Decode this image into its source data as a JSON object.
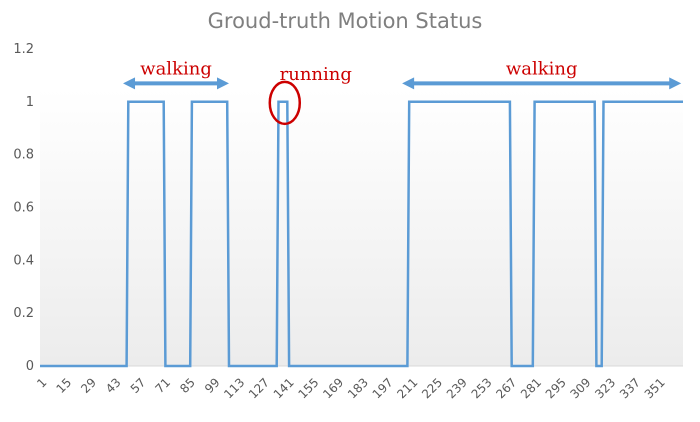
{
  "chart_data": {
    "type": "line",
    "title": "Groud-truth Motion Status",
    "xlabel": "",
    "ylabel": "",
    "xlim": [
      1,
      365
    ],
    "ylim": [
      0,
      1.2
    ],
    "y_ticks": [
      "0",
      "0.2",
      "0.4",
      "0.6",
      "0.8",
      "1",
      "1.2"
    ],
    "y_tick_values": [
      0,
      0.2,
      0.4,
      0.6,
      0.8,
      1,
      1.2
    ],
    "x_ticks": [
      1,
      15,
      29,
      43,
      57,
      71,
      85,
      99,
      113,
      127,
      141,
      155,
      169,
      183,
      197,
      211,
      225,
      239,
      253,
      267,
      281,
      295,
      309,
      323,
      337,
      351
    ],
    "grid": false,
    "legend": "none",
    "series": [
      {
        "color": "#5b9bd5",
        "segments": [
          {
            "from": 1,
            "to": 50,
            "value": 0
          },
          {
            "from": 51,
            "to": 71,
            "value": 1
          },
          {
            "from": 72,
            "to": 86,
            "value": 0
          },
          {
            "from": 87,
            "to": 107,
            "value": 1
          },
          {
            "from": 108,
            "to": 135,
            "value": 0
          },
          {
            "from": 136,
            "to": 141,
            "value": 1
          },
          {
            "from": 142,
            "to": 209,
            "value": 0
          },
          {
            "from": 210,
            "to": 267,
            "value": 1
          },
          {
            "from": 268,
            "to": 280,
            "value": 0
          },
          {
            "from": 281,
            "to": 315,
            "value": 1
          },
          {
            "from": 316,
            "to": 319,
            "value": 0
          },
          {
            "from": 320,
            "to": 365,
            "value": 1
          }
        ]
      }
    ],
    "annotations": [
      {
        "text": "walking",
        "type": "range-arrow",
        "from": 48,
        "to": 108,
        "y": 1.07,
        "color": "#cc0000",
        "arrow_color": "#5b9bd5"
      },
      {
        "text": "running",
        "type": "circle",
        "x": 139,
        "y": 1.0,
        "color": "#cc0000"
      },
      {
        "text": "walking",
        "type": "range-arrow",
        "from": 206,
        "to": 364,
        "y": 1.07,
        "color": "#cc0000",
        "arrow_color": "#5b9bd5"
      }
    ]
  }
}
